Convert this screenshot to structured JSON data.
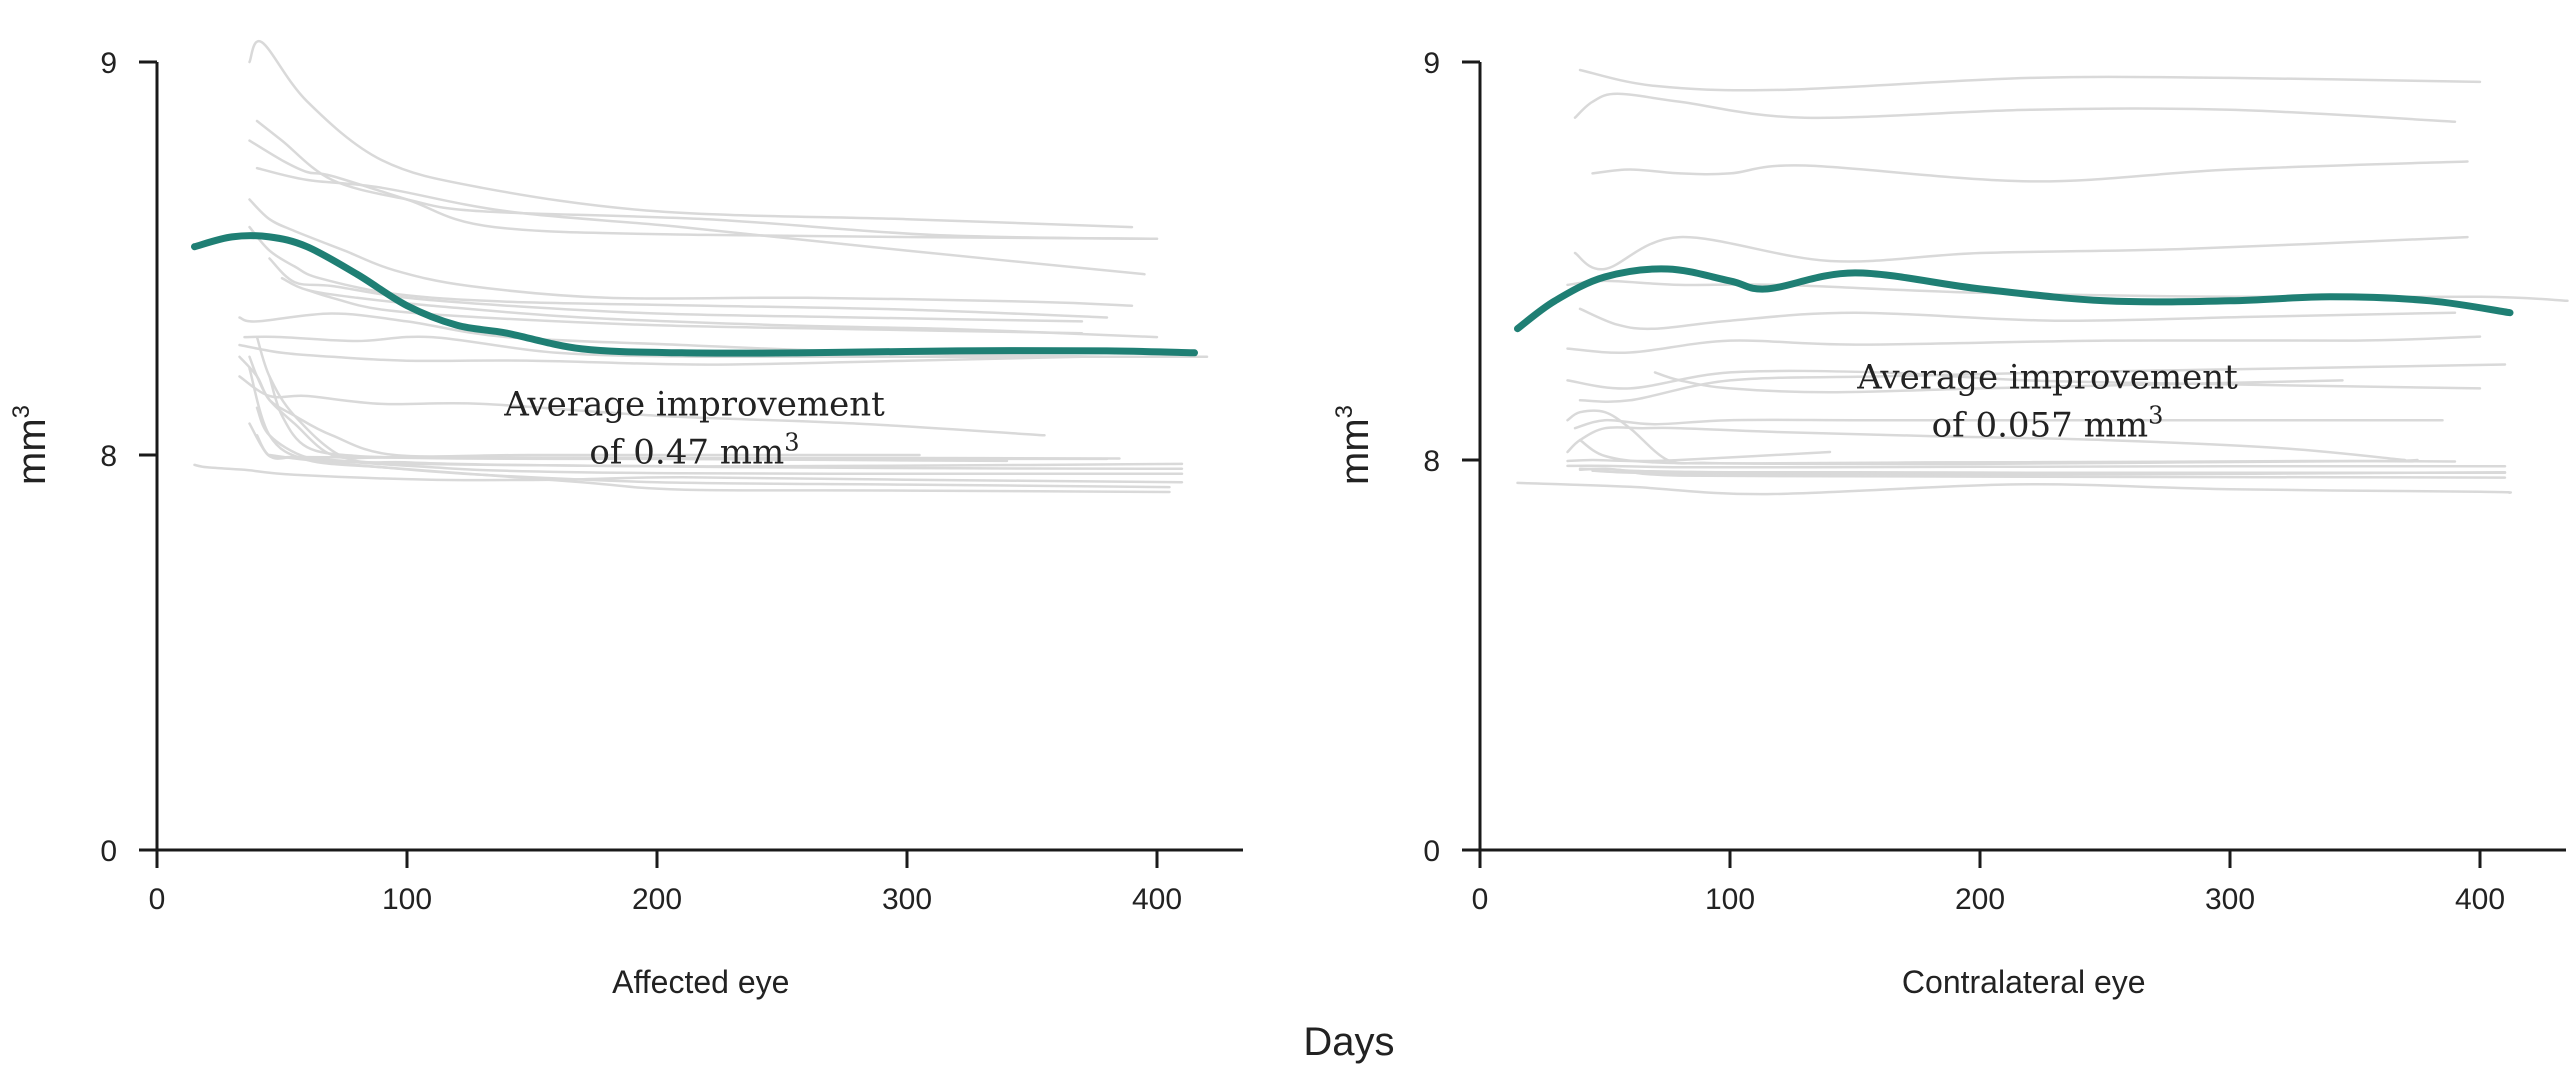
{
  "shared_xlabel": "Days",
  "colors": {
    "average": "#1f7f74",
    "individual": "#d9d9d9",
    "axis": "#1a1a1a"
  },
  "chart_data": [
    {
      "type": "line",
      "xlabel": "Affected eye",
      "ylabel": {
        "base": "mm",
        "sup": "3"
      },
      "xlim": [
        0,
        435
      ],
      "ylim": [
        0,
        9
      ],
      "x_ticks": [
        0,
        100,
        200,
        300,
        400
      ],
      "y_ticks": [
        {
          "value": 0,
          "label": "0"
        },
        {
          "value": 8,
          "label": "8"
        },
        {
          "value": 9,
          "label": "9"
        }
      ],
      "y_scale": "piecewise: 0 to 8 compressed, 8 to 9 expanded",
      "annotation": {
        "line1": "Average improvement",
        "line2_base": "of 0.47 mm",
        "line2_sup": "3",
        "x": 215,
        "y": 8.1
      },
      "average": {
        "name": "Average",
        "x": [
          15,
          30,
          45,
          60,
          80,
          100,
          120,
          140,
          170,
          210,
          260,
          320,
          380,
          415
        ],
        "y": [
          8.53,
          8.555,
          8.555,
          8.53,
          8.46,
          8.38,
          8.33,
          8.31,
          8.27,
          8.26,
          8.26,
          8.265,
          8.265,
          8.26
        ]
      },
      "individual": [
        {
          "x": [
            37,
            42,
            60,
            90,
            130,
            200,
            300,
            390
          ],
          "y": [
            9.0,
            9.05,
            8.9,
            8.75,
            8.68,
            8.62,
            8.6,
            8.58
          ]
        },
        {
          "x": [
            40,
            50,
            70,
            100,
            130,
            220,
            310,
            400
          ],
          "y": [
            8.85,
            8.8,
            8.7,
            8.65,
            8.62,
            8.6,
            8.56,
            8.55
          ]
        },
        {
          "x": [
            37,
            50,
            60,
            70,
            100,
            135,
            220,
            400
          ],
          "y": [
            8.8,
            8.75,
            8.72,
            8.71,
            8.65,
            8.58,
            8.56,
            8.55
          ]
        },
        {
          "x": [
            40,
            60,
            90,
            140,
            210,
            300,
            395
          ],
          "y": [
            8.73,
            8.7,
            8.68,
            8.62,
            8.58,
            8.52,
            8.46
          ]
        },
        {
          "x": [
            37,
            45,
            55,
            75,
            95,
            125,
            180,
            260,
            350,
            390
          ],
          "y": [
            8.65,
            8.6,
            8.57,
            8.52,
            8.47,
            8.43,
            8.4,
            8.4,
            8.39,
            8.38
          ]
        },
        {
          "x": [
            37,
            45,
            55,
            65,
            95,
            140,
            220,
            300,
            380
          ],
          "y": [
            8.58,
            8.52,
            8.48,
            8.45,
            8.41,
            8.39,
            8.38,
            8.37,
            8.35
          ]
        },
        {
          "x": [
            45,
            55,
            70,
            100,
            140,
            200,
            280,
            370
          ],
          "y": [
            8.5,
            8.44,
            8.43,
            8.4,
            8.38,
            8.36,
            8.35,
            8.34
          ]
        },
        {
          "x": [
            50,
            60,
            80,
            110,
            170,
            250,
            320,
            400
          ],
          "y": [
            8.45,
            8.42,
            8.4,
            8.38,
            8.35,
            8.33,
            8.32,
            8.3
          ]
        },
        {
          "x": [
            33,
            40,
            70,
            100,
            140,
            210,
            290,
            380
          ],
          "y": [
            8.35,
            8.34,
            8.36,
            8.34,
            8.3,
            8.28,
            8.26,
            8.25
          ]
        },
        {
          "x": [
            35,
            50,
            80,
            110,
            160,
            220,
            300,
            420
          ],
          "y": [
            8.3,
            8.3,
            8.29,
            8.3,
            8.26,
            8.25,
            8.25,
            8.25
          ]
        },
        {
          "x": [
            33,
            50,
            70,
            100,
            150,
            220,
            300,
            370
          ],
          "y": [
            8.28,
            8.26,
            8.25,
            8.24,
            8.24,
            8.23,
            8.24,
            8.25
          ]
        },
        {
          "x": [
            33,
            45,
            60,
            90,
            130,
            200,
            280,
            355
          ],
          "y": [
            8.2,
            8.15,
            8.15,
            8.13,
            8.13,
            8.1,
            8.08,
            8.05
          ]
        },
        {
          "x": [
            33,
            40,
            45,
            55,
            70,
            95,
            150,
            230,
            305
          ],
          "y": [
            8.25,
            8.2,
            8.14,
            8.1,
            8.05,
            8.0,
            8.0,
            8.0,
            8.0
          ]
        },
        {
          "x": [
            40,
            45,
            55,
            80,
            130,
            210,
            300,
            385
          ],
          "y": [
            8.05,
            7.98,
            7.96,
            7.95,
            7.95,
            7.94,
            7.94,
            7.93
          ]
        },
        {
          "x": [
            37,
            40,
            45,
            55,
            70,
            90,
            120,
            160,
            220,
            300,
            380
          ],
          "y": [
            8.25,
            8.2,
            8.14,
            8.08,
            8.0,
            7.95,
            7.93,
            7.92,
            7.92,
            7.92,
            7.92
          ]
        },
        {
          "x": [
            37,
            45,
            55,
            65,
            75,
            100,
            160,
            220,
            320,
            410
          ],
          "y": [
            8.08,
            7.98,
            7.96,
            7.92,
            7.88,
            7.82,
            7.79,
            7.77,
            7.79,
            7.82
          ]
        },
        {
          "x": [
            40,
            45,
            55,
            75,
            100,
            140,
            220,
            320,
            410
          ],
          "y": [
            8.3,
            8.2,
            8.1,
            7.95,
            7.85,
            7.8,
            7.76,
            7.73,
            7.72
          ]
        },
        {
          "x": [
            40,
            45,
            60,
            80,
            110,
            140,
            210,
            320,
            410
          ],
          "y": [
            8.12,
            8.05,
            7.95,
            7.85,
            7.75,
            7.68,
            7.63,
            7.62,
            7.62
          ]
        },
        {
          "x": [
            37,
            45,
            60,
            90,
            130,
            200,
            300,
            405
          ],
          "y": [
            8.22,
            8.05,
            7.9,
            7.75,
            7.6,
            7.45,
            7.4,
            7.35
          ]
        },
        {
          "x": [
            15,
            20,
            35,
            55,
            110,
            160,
            210,
            300,
            410
          ],
          "y": [
            7.8,
            7.75,
            7.7,
            7.6,
            7.5,
            7.5,
            7.55,
            7.5,
            7.45
          ]
        },
        {
          "x": [
            45,
            60,
            90,
            130,
            170,
            210,
            300,
            405
          ],
          "y": [
            8.0,
            7.9,
            7.75,
            7.6,
            7.45,
            7.3,
            7.28,
            7.25
          ]
        },
        {
          "x": [
            45,
            50,
            60,
            80,
            110,
            150,
            200,
            270,
            340
          ],
          "y": [
            8.2,
            8.1,
            8.02,
            7.98,
            7.95,
            7.93,
            7.92,
            7.9,
            7.88
          ]
        },
        {
          "x": [
            60,
            70,
            90,
            130,
            200,
            280,
            370
          ],
          "y": [
            8.42,
            8.4,
            8.37,
            8.35,
            8.33,
            8.32,
            8.31
          ]
        }
      ]
    },
    {
      "type": "line",
      "xlabel": "Contralateral eye",
      "ylabel": {
        "base": "mm",
        "sup": "3"
      },
      "xlim": [
        0,
        435
      ],
      "ylim": [
        0,
        9
      ],
      "x_ticks": [
        0,
        100,
        200,
        300,
        400
      ],
      "y_ticks": [
        {
          "value": 0,
          "label": "0"
        },
        {
          "value": 8,
          "label": "8"
        },
        {
          "value": 9,
          "label": "9"
        }
      ],
      "y_scale": "piecewise: 0 to 8 compressed, 8 to 9 expanded",
      "annotation": {
        "line1": "Average improvement",
        "line2_base": "of 0.057 mm",
        "line2_sup": "3",
        "x": 227,
        "y": 8.18
      },
      "average": {
        "name": "Average",
        "x": [
          15,
          30,
          50,
          75,
          100,
          115,
          150,
          200,
          250,
          300,
          340,
          380,
          412
        ],
        "y": [
          8.33,
          8.4,
          8.46,
          8.48,
          8.45,
          8.43,
          8.47,
          8.43,
          8.4,
          8.4,
          8.41,
          8.4,
          8.37
        ]
      },
      "individual": [
        {
          "x": [
            38,
            45,
            55,
            80,
            130,
            220,
            300,
            390
          ],
          "y": [
            8.86,
            8.9,
            8.92,
            8.9,
            8.86,
            8.88,
            8.88,
            8.85
          ]
        },
        {
          "x": [
            40,
            70,
            120,
            220,
            300,
            400
          ],
          "y": [
            8.98,
            8.94,
            8.93,
            8.96,
            8.96,
            8.95
          ]
        },
        {
          "x": [
            45,
            60,
            80,
            100,
            130,
            220,
            300,
            395
          ],
          "y": [
            8.72,
            8.73,
            8.72,
            8.72,
            8.74,
            8.7,
            8.73,
            8.75
          ]
        },
        {
          "x": [
            38,
            50,
            80,
            140,
            200,
            280,
            395
          ],
          "y": [
            8.52,
            8.48,
            8.56,
            8.5,
            8.52,
            8.53,
            8.56
          ]
        },
        {
          "x": [
            35,
            50,
            80,
            120,
            200,
            300,
            400,
            435
          ],
          "y": [
            8.44,
            8.45,
            8.44,
            8.44,
            8.42,
            8.41,
            8.41,
            8.4
          ]
        },
        {
          "x": [
            40,
            55,
            70,
            100,
            150,
            230,
            310,
            390
          ],
          "y": [
            8.38,
            8.34,
            8.33,
            8.35,
            8.37,
            8.35,
            8.36,
            8.37
          ]
        },
        {
          "x": [
            35,
            60,
            100,
            150,
            250,
            350,
            400
          ],
          "y": [
            8.28,
            8.27,
            8.3,
            8.29,
            8.3,
            8.3,
            8.31
          ]
        },
        {
          "x": [
            40,
            60,
            100,
            160,
            230,
            320,
            410
          ],
          "y": [
            8.15,
            8.15,
            8.2,
            8.21,
            8.22,
            8.23,
            8.24
          ]
        },
        {
          "x": [
            35,
            60,
            100,
            160,
            220,
            300,
            400
          ],
          "y": [
            8.2,
            8.18,
            8.22,
            8.22,
            8.2,
            8.19,
            8.18
          ]
        },
        {
          "x": [
            70,
            80,
            100,
            140,
            200,
            270,
            345
          ],
          "y": [
            8.22,
            8.2,
            8.18,
            8.17,
            8.18,
            8.19,
            8.2
          ]
        },
        {
          "x": [
            38,
            50,
            70,
            100,
            150,
            200,
            260,
            320,
            385
          ],
          "y": [
            8.08,
            8.1,
            8.09,
            8.1,
            8.1,
            8.1,
            8.1,
            8.1,
            8.1
          ]
        },
        {
          "x": [
            35,
            40,
            50,
            65,
            80,
            120,
            180,
            250,
            320,
            370
          ],
          "y": [
            8.02,
            8.05,
            8.08,
            8.08,
            8.08,
            8.07,
            8.06,
            8.05,
            8.03,
            8.0
          ]
        },
        {
          "x": [
            35,
            45,
            60,
            80,
            140
          ],
          "y": [
            7.98,
            8.0,
            7.98,
            8.0,
            8.02
          ]
        },
        {
          "x": [
            40,
            50,
            70,
            110,
            180,
            260,
            330,
            390
          ],
          "y": [
            8.05,
            8.01,
            7.95,
            7.93,
            7.95,
            7.96,
            7.98,
            7.97
          ]
        },
        {
          "x": [
            35,
            40,
            50,
            60,
            75,
            90,
            130,
            200,
            280,
            360,
            375
          ],
          "y": [
            8.1,
            8.12,
            8.12,
            8.08,
            8.0,
            7.94,
            7.92,
            7.92,
            7.95,
            7.98,
            8.0
          ]
        },
        {
          "x": [
            35,
            50,
            80,
            130,
            200,
            300,
            410
          ],
          "y": [
            7.88,
            7.88,
            7.85,
            7.85,
            7.86,
            7.87,
            7.87
          ]
        },
        {
          "x": [
            40,
            50,
            60,
            80,
            100,
            150,
            220,
            290,
            360,
            410
          ],
          "y": [
            7.8,
            7.82,
            7.78,
            7.76,
            7.75,
            7.75,
            7.74,
            7.74,
            7.74,
            7.74
          ]
        },
        {
          "x": [
            45,
            55,
            70,
            100,
            150,
            220,
            310,
            410
          ],
          "y": [
            7.78,
            7.75,
            7.73,
            7.72,
            7.71,
            7.7,
            7.72,
            7.75
          ]
        },
        {
          "x": [
            40,
            55,
            65,
            80,
            120,
            200,
            300,
            410
          ],
          "y": [
            7.82,
            7.8,
            7.72,
            7.68,
            7.67,
            7.66,
            7.65,
            7.64
          ]
        },
        {
          "x": [
            15,
            60,
            115,
            215,
            300,
            400,
            412
          ],
          "y": [
            7.53,
            7.45,
            7.3,
            7.5,
            7.4,
            7.35,
            7.33
          ]
        }
      ]
    }
  ]
}
